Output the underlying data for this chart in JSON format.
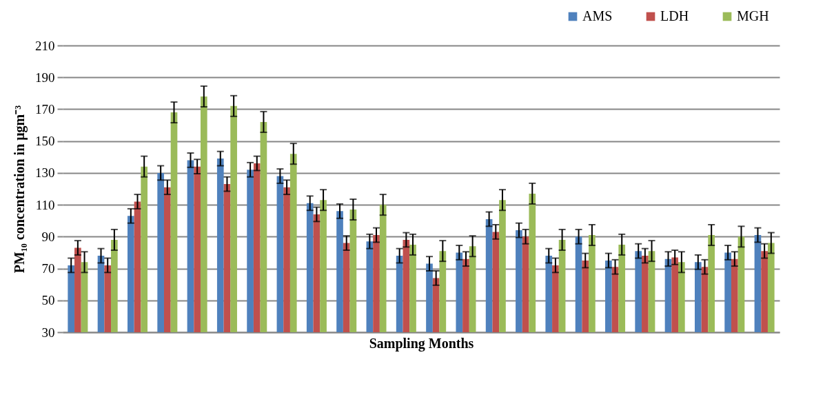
{
  "chart_data": {
    "type": "bar",
    "xlabel": "Sampling Months",
    "ylabel": "PM₁₀ concentration in μgm⁻³",
    "categories": [
      null,
      null,
      null,
      null,
      null,
      null,
      null,
      null,
      null,
      null,
      null,
      null,
      null,
      null,
      null,
      null,
      null,
      null,
      null,
      null,
      null,
      null,
      null,
      null
    ],
    "series": [
      {
        "name": "AMS",
        "color": "#4f81bd",
        "values": [
          72,
          78,
          103,
          130,
          138,
          139,
          132,
          128,
          111,
          106,
          87,
          78,
          73,
          80,
          101,
          94,
          78,
          90,
          75,
          81,
          76,
          74,
          80,
          91
        ],
        "errors": [
          4.5,
          4.5,
          4.5,
          4.5,
          4.5,
          4.5,
          4.5,
          4.5,
          4.5,
          4.5,
          4.5,
          4.5,
          4.5,
          4.5,
          4.5,
          4.5,
          4.5,
          4.5,
          4.5,
          4.5,
          4.5,
          4.5,
          4.5,
          4.5
        ]
      },
      {
        "name": "LDH",
        "color": "#c0504d",
        "values": [
          83,
          72,
          112,
          121,
          134,
          123,
          136,
          121,
          104,
          86,
          91,
          88,
          64,
          76,
          93,
          90,
          72,
          75,
          71,
          78,
          77,
          71,
          76,
          81
        ],
        "errors": [
          4.5,
          4.5,
          4.5,
          4.5,
          4.5,
          4.5,
          4.5,
          4.5,
          4.5,
          4.5,
          4.5,
          4.5,
          4.5,
          4.5,
          4.5,
          4.5,
          4.5,
          4.5,
          4.5,
          4.5,
          4.5,
          4.5,
          4.5,
          4.5
        ]
      },
      {
        "name": "MGH",
        "color": "#9bbb59",
        "values": [
          74,
          88,
          134,
          168,
          178,
          172,
          162,
          142,
          113,
          107,
          110,
          85,
          81,
          84,
          113,
          117,
          88,
          91,
          85,
          81,
          74,
          91,
          90,
          86
        ],
        "errors": [
          6.5,
          6.5,
          6.5,
          6.5,
          6.5,
          6.5,
          6.5,
          6.5,
          6.5,
          6.5,
          6.5,
          6.5,
          6.5,
          6.5,
          6.5,
          6.5,
          6.5,
          6.5,
          6.5,
          6.5,
          6.5,
          6.5,
          6.5,
          6.5
        ]
      }
    ],
    "ylim": [
      30,
      210
    ],
    "yticks": [
      30,
      50,
      70,
      90,
      110,
      130,
      150,
      170,
      190,
      210
    ],
    "grid": "y",
    "legend": "top right",
    "tick_labels": "y"
  }
}
